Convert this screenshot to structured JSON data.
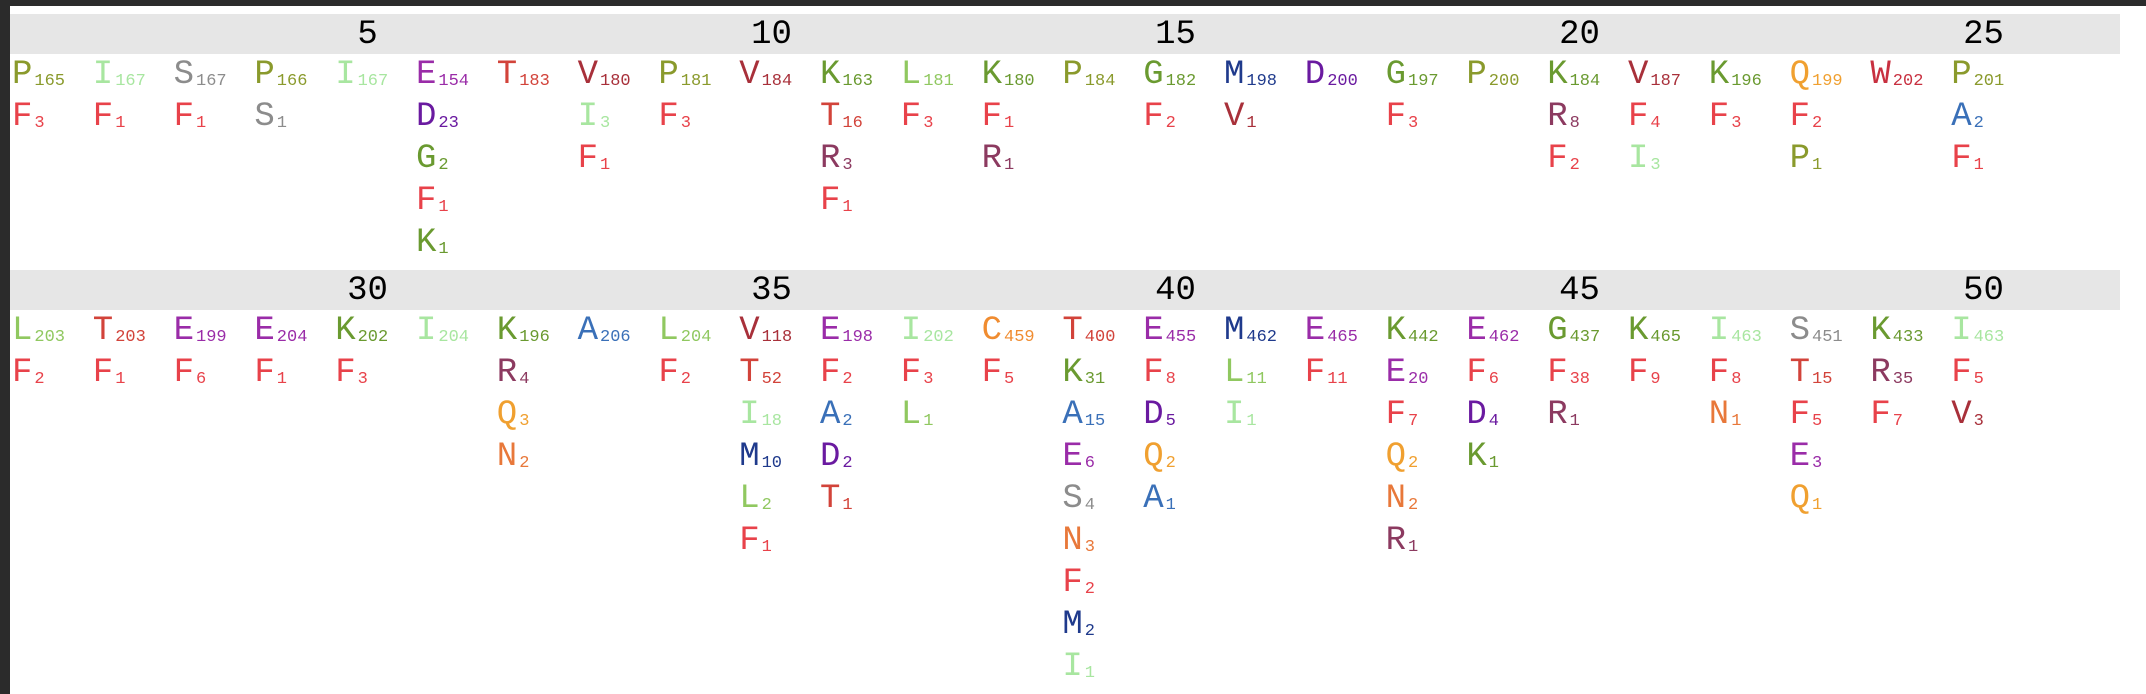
{
  "colors": {
    "P": "#8a9a2c",
    "I": "#a8e6a0",
    "S": "#8c8c8c",
    "E": "#9a2ca8",
    "T": "#d2433a",
    "V": "#a8303a",
    "K": "#6a9a30",
    "L": "#90c860",
    "G": "#6a9a30",
    "M": "#1f3a8c",
    "D": "#6a1aa0",
    "R": "#8c3a60",
    "Q": "#f0a030",
    "W": "#c83040",
    "F": "#e8424a",
    "A": "#3a70b8",
    "C": "#f08c30",
    "N": "#e8783a"
  },
  "blocks": [
    {
      "ticks": [
        "5",
        "10",
        "15",
        "20",
        "25"
      ],
      "columns": [
        [
          [
            "P",
            "165"
          ],
          [
            "F",
            "3"
          ]
        ],
        [
          [
            "I",
            "167"
          ],
          [
            "F",
            "1"
          ]
        ],
        [
          [
            "S",
            "167"
          ],
          [
            "F",
            "1"
          ]
        ],
        [
          [
            "P",
            "166"
          ],
          [
            "S",
            "1"
          ]
        ],
        [
          [
            "I",
            "167"
          ]
        ],
        [
          [
            "E",
            "154"
          ],
          [
            "D",
            "23"
          ],
          [
            "G",
            "2"
          ],
          [
            "F",
            "1"
          ],
          [
            "K",
            "1"
          ]
        ],
        [
          [
            "T",
            "183"
          ]
        ],
        [
          [
            "V",
            "180"
          ],
          [
            "I",
            "3"
          ],
          [
            "F",
            "1"
          ]
        ],
        [
          [
            "P",
            "181"
          ],
          [
            "F",
            "3"
          ]
        ],
        [
          [
            "V",
            "184"
          ]
        ],
        [
          [
            "K",
            "163"
          ],
          [
            "T",
            "16"
          ],
          [
            "R",
            "3"
          ],
          [
            "F",
            "1"
          ]
        ],
        [
          [
            "L",
            "181"
          ],
          [
            "F",
            "3"
          ]
        ],
        [
          [
            "K",
            "180"
          ],
          [
            "F",
            "1"
          ],
          [
            "R",
            "1"
          ]
        ],
        [
          [
            "P",
            "184"
          ]
        ],
        [
          [
            "G",
            "182"
          ],
          [
            "F",
            "2"
          ]
        ],
        [
          [
            "M",
            "198"
          ],
          [
            "V",
            "1"
          ]
        ],
        [
          [
            "D",
            "200"
          ]
        ],
        [
          [
            "G",
            "197"
          ],
          [
            "F",
            "3"
          ]
        ],
        [
          [
            "P",
            "200"
          ]
        ],
        [
          [
            "K",
            "184"
          ],
          [
            "R",
            "8"
          ],
          [
            "F",
            "2"
          ]
        ],
        [
          [
            "V",
            "187"
          ],
          [
            "F",
            "4"
          ],
          [
            "I",
            "3"
          ]
        ],
        [
          [
            "K",
            "196"
          ],
          [
            "F",
            "3"
          ]
        ],
        [
          [
            "Q",
            "199"
          ],
          [
            "F",
            "2"
          ],
          [
            "P",
            "1"
          ]
        ],
        [
          [
            "W",
            "202"
          ]
        ],
        [
          [
            "P",
            "201"
          ],
          [
            "A",
            "2"
          ],
          [
            "F",
            "1"
          ]
        ]
      ]
    },
    {
      "ticks": [
        "30",
        "35",
        "40",
        "45",
        "50"
      ],
      "columns": [
        [
          [
            "L",
            "203"
          ],
          [
            "F",
            "2"
          ]
        ],
        [
          [
            "T",
            "203"
          ],
          [
            "F",
            "1"
          ]
        ],
        [
          [
            "E",
            "199"
          ],
          [
            "F",
            "6"
          ]
        ],
        [
          [
            "E",
            "204"
          ],
          [
            "F",
            "1"
          ]
        ],
        [
          [
            "K",
            "202"
          ],
          [
            "F",
            "3"
          ]
        ],
        [
          [
            "I",
            "204"
          ]
        ],
        [
          [
            "K",
            "196"
          ],
          [
            "R",
            "4"
          ],
          [
            "Q",
            "3"
          ],
          [
            "N",
            "2"
          ]
        ],
        [
          [
            "A",
            "206"
          ]
        ],
        [
          [
            "L",
            "204"
          ],
          [
            "F",
            "2"
          ]
        ],
        [
          [
            "V",
            "118"
          ],
          [
            "T",
            "52"
          ],
          [
            "I",
            "18"
          ],
          [
            "M",
            "10"
          ],
          [
            "L",
            "2"
          ],
          [
            "F",
            "1"
          ]
        ],
        [
          [
            "E",
            "198"
          ],
          [
            "F",
            "2"
          ],
          [
            "A",
            "2"
          ],
          [
            "D",
            "2"
          ],
          [
            "T",
            "1"
          ]
        ],
        [
          [
            "I",
            "202"
          ],
          [
            "F",
            "3"
          ],
          [
            "L",
            "1"
          ]
        ],
        [
          [
            "C",
            "459"
          ],
          [
            "F",
            "5"
          ]
        ],
        [
          [
            "T",
            "400"
          ],
          [
            "K",
            "31"
          ],
          [
            "A",
            "15"
          ],
          [
            "E",
            "6"
          ],
          [
            "S",
            "4"
          ],
          [
            "N",
            "3"
          ],
          [
            "F",
            "2"
          ],
          [
            "M",
            "2"
          ],
          [
            "I",
            "1"
          ]
        ],
        [
          [
            "E",
            "455"
          ],
          [
            "F",
            "8"
          ],
          [
            "D",
            "5"
          ],
          [
            "Q",
            "2"
          ],
          [
            "A",
            "1"
          ]
        ],
        [
          [
            "M",
            "462"
          ],
          [
            "L",
            "11"
          ],
          [
            "I",
            "1"
          ]
        ],
        [
          [
            "E",
            "465"
          ],
          [
            "F",
            "11"
          ]
        ],
        [
          [
            "K",
            "442"
          ],
          [
            "E",
            "20"
          ],
          [
            "F",
            "7"
          ],
          [
            "Q",
            "2"
          ],
          [
            "N",
            "2"
          ],
          [
            "R",
            "1"
          ]
        ],
        [
          [
            "E",
            "462"
          ],
          [
            "F",
            "6"
          ],
          [
            "D",
            "4"
          ],
          [
            "K",
            "1"
          ]
        ],
        [
          [
            "G",
            "437"
          ],
          [
            "F",
            "38"
          ],
          [
            "R",
            "1"
          ]
        ],
        [
          [
            "K",
            "465"
          ],
          [
            "F",
            "9"
          ]
        ],
        [
          [
            "I",
            "463"
          ],
          [
            "F",
            "8"
          ],
          [
            "N",
            "1"
          ]
        ],
        [
          [
            "S",
            "451"
          ],
          [
            "T",
            "15"
          ],
          [
            "F",
            "5"
          ],
          [
            "E",
            "3"
          ],
          [
            "Q",
            "1"
          ]
        ],
        [
          [
            "K",
            "433"
          ],
          [
            "R",
            "35"
          ],
          [
            "F",
            "7"
          ]
        ],
        [
          [
            "I",
            "463"
          ],
          [
            "F",
            "5"
          ],
          [
            "V",
            "3"
          ]
        ]
      ]
    }
  ]
}
